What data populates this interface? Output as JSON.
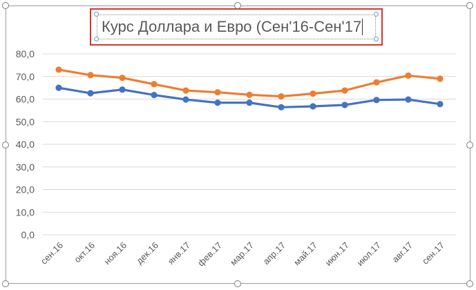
{
  "chart_data": {
    "type": "line",
    "title": "Курс Доллара и Евро (Сен'16-Сен'17",
    "categories": [
      "сен.16",
      "окт.16",
      "ноя.16",
      "дек.16",
      "янв.17",
      "фев.17",
      "мар.17",
      "апр.17",
      "май.17",
      "июн.17",
      "июл.17",
      "авг.17",
      "сен.17"
    ],
    "series": [
      {
        "values": [
          73.0,
          70.6,
          69.4,
          66.6,
          63.8,
          63.0,
          61.9,
          61.2,
          62.4,
          63.8,
          67.4,
          70.4,
          69.0
        ],
        "color": "#ed7d31"
      },
      {
        "values": [
          65.0,
          62.6,
          64.2,
          61.8,
          59.8,
          58.4,
          58.4,
          56.4,
          56.8,
          57.4,
          59.6,
          59.8,
          57.8
        ],
        "color": "#4472c4"
      }
    ],
    "yticks": [
      "0,0",
      "10,0",
      "20,0",
      "30,0",
      "40,0",
      "50,0",
      "60,0",
      "70,0",
      "80,0"
    ],
    "ylim": [
      0,
      80
    ],
    "grid": true,
    "legend": "none"
  }
}
